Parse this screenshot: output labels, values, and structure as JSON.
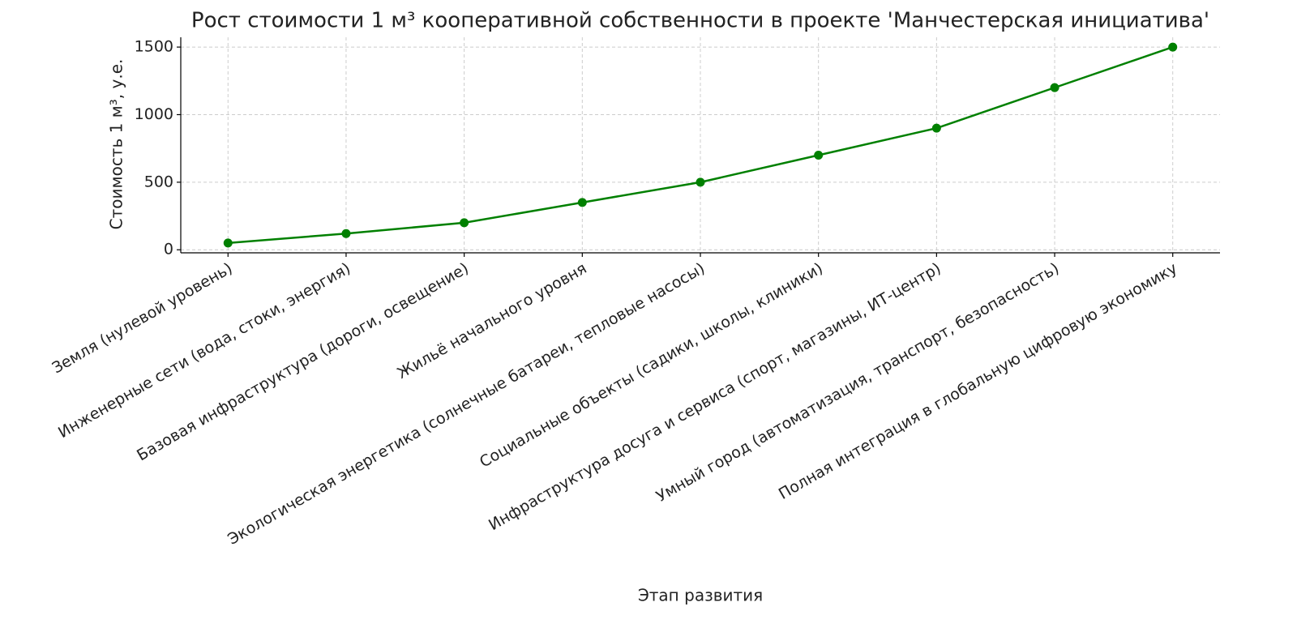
{
  "chart_data": {
    "type": "line",
    "title": "Рост стоимости 1 м³ кооперативной собственности в проекте 'Манчестерская инициатива'",
    "x_label": "Этап развития",
    "y_label": "Стоимость 1 м³, у.е.",
    "categories": [
      "Земля (нулевой уровень)",
      "Инженерные сети (вода, стоки, энергия)",
      "Базовая инфраструктура (дороги, освещение)",
      "Жильё начального уровня",
      "Экологическая энергетика (солнечные батареи, тепловые насосы)",
      "Социальные объекты (садики, школы, клиники)",
      "Инфраструктура досуга и сервиса (спорт, магазины, ИТ-центр)",
      "Умный город (автоматизация, транспорт, безопасность)",
      "Полная интеграция в глобальную цифровую экономику"
    ],
    "values": [
      50,
      120,
      200,
      350,
      500,
      700,
      900,
      1200,
      1500
    ],
    "color": "#008000",
    "ylim": [
      -22.5,
      1572.5
    ],
    "yticks": [
      0,
      500,
      1000,
      1500
    ],
    "grid": true
  }
}
